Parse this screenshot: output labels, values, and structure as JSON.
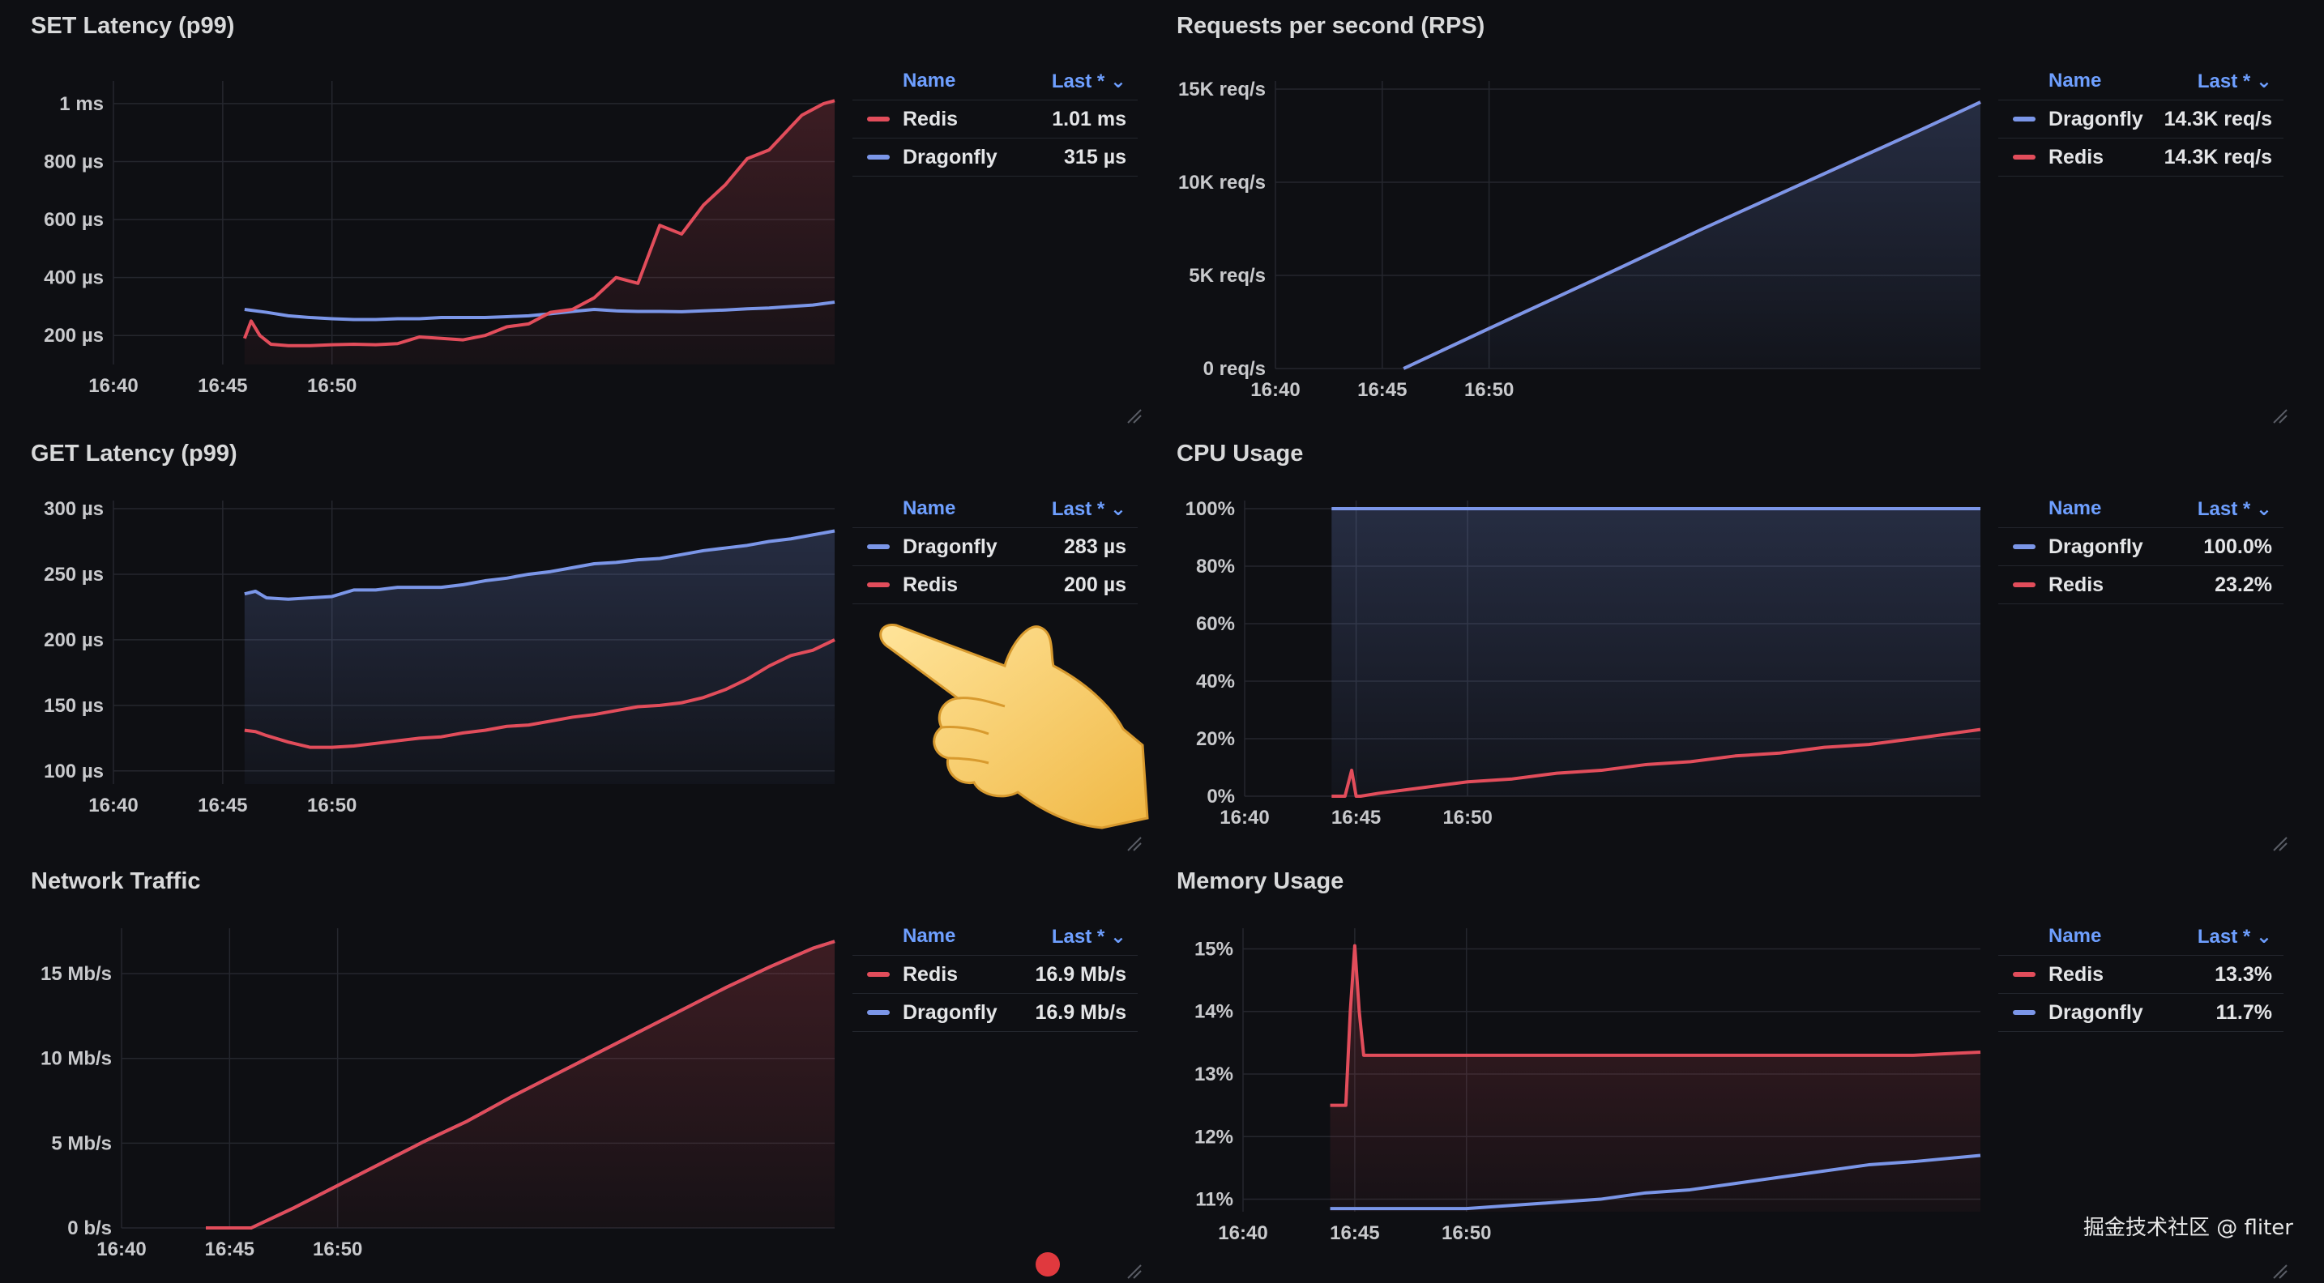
{
  "dashboard": {
    "legend_name_header": "Name",
    "legend_last_header": "Last * ⌄",
    "watermark": "掘金技术社区 @ fliter",
    "colors": {
      "redis": "#e24d5b",
      "dragonfly": "#7b96e8",
      "background": "#0e0f13",
      "grid": "#25272e"
    }
  },
  "chart_data": [
    {
      "id": "set-latency",
      "title": "SET Latency (p99)",
      "type": "line",
      "x_ticks": [
        "16:40",
        "16:45",
        "16:50"
      ],
      "y_ticks": [
        "200 µs",
        "400 µs",
        "600 µs",
        "800 µs",
        "1 ms"
      ],
      "ylim": [
        100,
        1050
      ],
      "fill": "redis",
      "series": [
        {
          "name": "Redis",
          "color": "#e24d5b",
          "last": "1.01 ms",
          "x": [
            16.0,
            16.3,
            16.7,
            17.2,
            18,
            19,
            20,
            21,
            22,
            23,
            24,
            25,
            26,
            27,
            28,
            29,
            30,
            31,
            32,
            33,
            34,
            35,
            36,
            37,
            38,
            39,
            40,
            40.5,
            41,
            41.5,
            42,
            42.5,
            43
          ],
          "y": [
            190,
            250,
            200,
            170,
            165,
            165,
            168,
            170,
            168,
            172,
            195,
            190,
            185,
            200,
            230,
            240,
            280,
            290,
            330,
            400,
            380,
            580,
            550,
            650,
            720,
            810,
            840,
            880,
            920,
            960,
            980,
            1000,
            1010
          ]
        },
        {
          "name": "Dragonfly",
          "color": "#7b96e8",
          "last": "315 µs",
          "x": [
            16.0,
            17,
            18,
            19,
            20,
            21,
            22,
            23,
            24,
            25,
            26,
            27,
            28,
            29,
            30,
            31,
            32,
            33,
            34,
            35,
            36,
            37,
            38,
            39,
            40,
            41,
            42,
            43
          ],
          "y": [
            290,
            280,
            268,
            262,
            258,
            255,
            255,
            258,
            258,
            262,
            262,
            262,
            265,
            268,
            275,
            283,
            290,
            285,
            283,
            283,
            282,
            285,
            288,
            292,
            295,
            300,
            305,
            315
          ]
        }
      ]
    },
    {
      "id": "rps",
      "title": "Requests per second (RPS)",
      "type": "area",
      "x_ticks": [
        "16:40",
        "16:45",
        "16:50"
      ],
      "y_ticks": [
        "0 req/s",
        "5K req/s",
        "10K req/s",
        "15K req/s"
      ],
      "ylim": [
        0,
        15000
      ],
      "fill": "dragonfly",
      "series": [
        {
          "name": "Dragonfly",
          "color": "#7b96e8",
          "last": "14.3K req/s",
          "x": [
            16.0,
            20,
            25,
            30,
            35,
            40,
            43
          ],
          "y": [
            0,
            2150,
            4800,
            7500,
            10100,
            12700,
            14300
          ]
        },
        {
          "name": "Redis",
          "color": "#e24d5b",
          "last": "14.3K req/s",
          "x": [
            16.0,
            20,
            25,
            30,
            35,
            40,
            43
          ],
          "y": [
            0,
            2150,
            4800,
            7500,
            10100,
            12700,
            14300
          ]
        }
      ]
    },
    {
      "id": "get-latency",
      "title": "GET Latency (p99)",
      "type": "area",
      "x_ticks": [
        "16:40",
        "16:45",
        "16:50"
      ],
      "y_ticks": [
        "100 µs",
        "150 µs",
        "200 µs",
        "250 µs",
        "300 µs"
      ],
      "ylim": [
        90,
        300
      ],
      "fill": "dragonfly",
      "series": [
        {
          "name": "Dragonfly",
          "color": "#7b96e8",
          "last": "283 µs",
          "x": [
            16.0,
            16.5,
            17,
            18,
            19,
            20,
            21,
            22,
            23,
            24,
            25,
            26,
            27,
            28,
            29,
            30,
            31,
            32,
            33,
            34,
            35,
            36,
            37,
            38,
            39,
            40,
            41,
            42,
            43
          ],
          "y": [
            235,
            237,
            232,
            231,
            232,
            233,
            238,
            238,
            240,
            240,
            240,
            242,
            245,
            247,
            250,
            252,
            255,
            258,
            259,
            261,
            262,
            265,
            268,
            270,
            272,
            275,
            277,
            280,
            283
          ]
        },
        {
          "name": "Redis",
          "color": "#e24d5b",
          "last": "200 µs",
          "x": [
            16.0,
            16.5,
            17,
            18,
            19,
            20,
            21,
            22,
            23,
            24,
            25,
            26,
            27,
            28,
            29,
            30,
            31,
            32,
            33,
            34,
            35,
            36,
            37,
            38,
            39,
            40,
            41,
            42,
            43
          ],
          "y": [
            131,
            130,
            127,
            122,
            118,
            118,
            119,
            121,
            123,
            125,
            126,
            129,
            131,
            134,
            135,
            138,
            141,
            143,
            146,
            149,
            150,
            152,
            156,
            162,
            170,
            180,
            188,
            192,
            200
          ]
        }
      ]
    },
    {
      "id": "cpu",
      "title": "CPU Usage",
      "type": "area",
      "x_ticks": [
        "16:40",
        "16:45",
        "16:50"
      ],
      "y_ticks": [
        "0%",
        "20%",
        "40%",
        "60%",
        "80%",
        "100%"
      ],
      "ylim": [
        0,
        100
      ],
      "fill": "dragonfly",
      "series": [
        {
          "name": "Dragonfly",
          "color": "#7b96e8",
          "last": "100.0%",
          "x": [
            13.9,
            43
          ],
          "y": [
            100,
            100
          ]
        },
        {
          "name": "Redis",
          "color": "#e24d5b",
          "last": "23.2%",
          "x": [
            13.9,
            14.5,
            14.8,
            15.0,
            15.2,
            16,
            18,
            20,
            22,
            24,
            26,
            28,
            30,
            32,
            34,
            36,
            38,
            40,
            43
          ],
          "y": [
            0,
            0,
            9,
            0,
            0,
            1,
            3,
            5,
            6,
            8,
            9,
            11,
            12,
            14,
            15,
            17,
            18,
            20,
            23.2
          ]
        }
      ]
    },
    {
      "id": "network",
      "title": "Network Traffic",
      "type": "area",
      "x_ticks": [
        "16:40",
        "16:45",
        "16:50"
      ],
      "y_ticks": [
        "0 b/s",
        "5 Mb/s",
        "10 Mb/s",
        "15 Mb/s"
      ],
      "ylim": [
        0,
        17.2
      ],
      "fill": "redis",
      "series": [
        {
          "name": "Redis",
          "color": "#e24d5b",
          "last": "16.9 Mb/s",
          "x": [
            13.9,
            16,
            18,
            20,
            22,
            24,
            26,
            28,
            30,
            32,
            34,
            36,
            38,
            40,
            42,
            43
          ],
          "y": [
            0,
            0,
            1.2,
            2.5,
            3.8,
            5.1,
            6.3,
            7.7,
            9.0,
            10.3,
            11.6,
            12.9,
            14.2,
            15.4,
            16.5,
            16.9
          ]
        },
        {
          "name": "Dragonfly",
          "color": "#7b96e8",
          "last": "16.9 Mb/s",
          "x": [
            13.9,
            16,
            18,
            20,
            22,
            24,
            26,
            28,
            30,
            32,
            34,
            36,
            38,
            40,
            42,
            43
          ],
          "y": [
            0,
            0,
            1.2,
            2.5,
            3.8,
            5.1,
            6.3,
            7.7,
            9.0,
            10.3,
            11.6,
            12.9,
            14.2,
            15.4,
            16.5,
            16.9
          ]
        }
      ]
    },
    {
      "id": "memory",
      "title": "Memory Usage",
      "type": "area",
      "x_ticks": [
        "16:40",
        "16:45",
        "16:50"
      ],
      "y_ticks": [
        "11%",
        "12%",
        "13%",
        "14%",
        "15%"
      ],
      "ylim": [
        10.8,
        15.2
      ],
      "fill": "redis",
      "series": [
        {
          "name": "Redis",
          "color": "#e24d5b",
          "last": "13.3%",
          "x": [
            13.9,
            14.6,
            14.8,
            15.0,
            15.2,
            15.4,
            20,
            25,
            30,
            35,
            40,
            43
          ],
          "y": [
            12.5,
            12.5,
            14.0,
            15.05,
            14.0,
            13.3,
            13.3,
            13.3,
            13.3,
            13.3,
            13.3,
            13.35
          ]
        },
        {
          "name": "Dragonfly",
          "color": "#7b96e8",
          "last": "11.7%",
          "x": [
            13.9,
            18,
            20,
            22,
            24,
            26,
            28,
            30,
            32,
            34,
            36,
            38,
            40,
            43
          ],
          "y": [
            10.85,
            10.85,
            10.85,
            10.9,
            10.95,
            11.0,
            11.1,
            11.15,
            11.25,
            11.35,
            11.45,
            11.55,
            11.6,
            11.7
          ]
        }
      ]
    }
  ]
}
